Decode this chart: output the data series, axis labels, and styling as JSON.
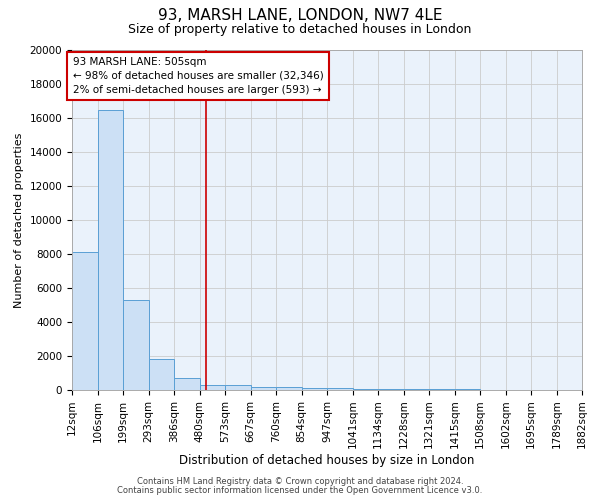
{
  "title": "93, MARSH LANE, LONDON, NW7 4LE",
  "subtitle": "Size of property relative to detached houses in London",
  "xlabel": "Distribution of detached houses by size in London",
  "ylabel": "Number of detached properties",
  "footnote1": "Contains HM Land Registry data © Crown copyright and database right 2024.",
  "footnote2": "Contains public sector information licensed under the Open Government Licence v3.0.",
  "bin_edges": [
    12,
    106,
    199,
    293,
    386,
    480,
    573,
    667,
    760,
    854,
    947,
    1041,
    1134,
    1228,
    1321,
    1415,
    1508,
    1602,
    1695,
    1789,
    1882
  ],
  "bin_labels": [
    "12sqm",
    "106sqm",
    "199sqm",
    "293sqm",
    "386sqm",
    "480sqm",
    "573sqm",
    "667sqm",
    "760sqm",
    "854sqm",
    "947sqm",
    "1041sqm",
    "1134sqm",
    "1228sqm",
    "1321sqm",
    "1415sqm",
    "1508sqm",
    "1602sqm",
    "1695sqm",
    "1789sqm",
    "1882sqm"
  ],
  "bar_heights": [
    8100,
    16500,
    5300,
    1850,
    700,
    310,
    280,
    200,
    170,
    130,
    100,
    80,
    65,
    50,
    40,
    30,
    25,
    18,
    12,
    8
  ],
  "bar_color": "#cce0f5",
  "bar_edgecolor": "#5a9fd4",
  "grid_color": "#cccccc",
  "bg_color": "#eaf2fb",
  "red_line_x": 505,
  "annotation_text_line1": "93 MARSH LANE: 505sqm",
  "annotation_text_line2": "← 98% of detached houses are smaller (32,346)",
  "annotation_text_line3": "2% of semi-detached houses are larger (593) →",
  "annotation_box_color": "#cc0000",
  "red_line_color": "#cc0000",
  "ylim": [
    0,
    20000
  ],
  "yticks": [
    0,
    2000,
    4000,
    6000,
    8000,
    10000,
    12000,
    14000,
    16000,
    18000,
    20000
  ],
  "title_fontsize": 11,
  "subtitle_fontsize": 9,
  "ylabel_fontsize": 8,
  "xlabel_fontsize": 8.5,
  "tick_fontsize": 7.5,
  "footnote_fontsize": 6
}
